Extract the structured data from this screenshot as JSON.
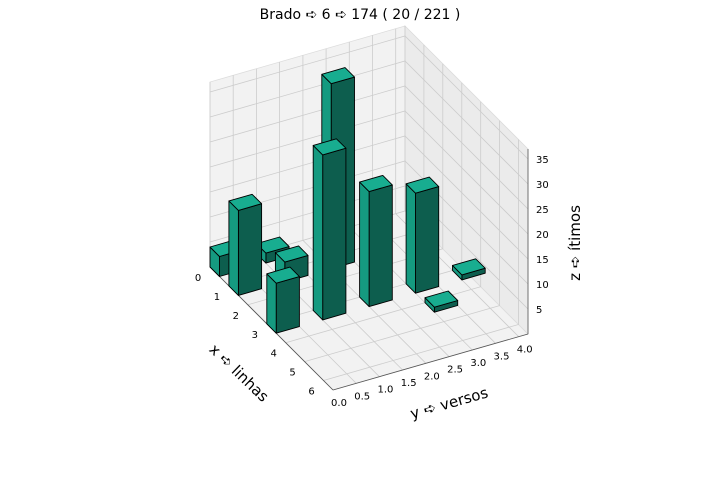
{
  "chart_data": {
    "type": "bar3d",
    "title": "Brado ➪ 6 ➪ 174 ( 20 / 221 )",
    "xlabel": "x ➪ linhas",
    "ylabel": "y ➪ versos",
    "zlabel": "z ➪ ítimos",
    "x_ticks": [
      "0",
      "1",
      "2",
      "3",
      "4",
      "5",
      "6"
    ],
    "y_ticks": [
      "0.0",
      "0.5",
      "1.0",
      "1.5",
      "2.0",
      "2.5",
      "3.0",
      "3.5",
      "4.0"
    ],
    "z_ticks": [
      "5",
      "10",
      "15",
      "20",
      "25",
      "30",
      "35"
    ],
    "xlim": [
      0,
      6.5
    ],
    "ylim": [
      0,
      4.2
    ],
    "zlim": [
      0,
      37
    ],
    "bar_color": "#1abc9c",
    "grid": true,
    "bars": [
      {
        "x": 0,
        "y": 0,
        "z": 4
      },
      {
        "x": 0,
        "y": 1,
        "z": 2
      },
      {
        "x": 1,
        "y": 0,
        "z": 17
      },
      {
        "x": 1,
        "y": 1,
        "z": 4
      },
      {
        "x": 1,
        "y": 2,
        "z": 37
      },
      {
        "x": 3,
        "y": 0,
        "z": 10
      },
      {
        "x": 3,
        "y": 1,
        "z": 33
      },
      {
        "x": 3,
        "y": 2,
        "z": 23
      },
      {
        "x": 3,
        "y": 3,
        "z": 20
      },
      {
        "x": 3,
        "y": 4,
        "z": 1
      },
      {
        "x": 4,
        "y": 3,
        "z": 1
      }
    ]
  }
}
